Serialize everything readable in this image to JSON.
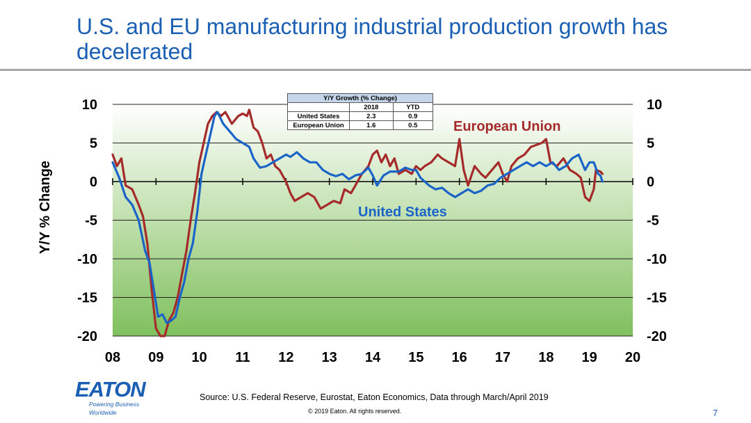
{
  "slide": {
    "title": "U.S. and EU manufacturing industrial production growth has decelerated",
    "source": "Source: U.S. Federal Reserve, Eurostat, Eaton Economics, Data through March/April 2019",
    "copyright": "© 2019 Eaton. All rights reserved.",
    "page_number": "7",
    "logo_text": "EATON",
    "logo_tagline": "Powering Business Worldwide",
    "brand_color": "#1a5fb4"
  },
  "growth_table": {
    "caption": "Y/Y Growth (% Change)",
    "columns": [
      "",
      "2018",
      "YTD"
    ],
    "rows": [
      {
        "name": "United States",
        "v2018": "2.3",
        "ytd": "0.9"
      },
      {
        "name": "European Union",
        "v2018": "1.6",
        "ytd": "0.5"
      }
    ]
  },
  "chart_data": {
    "type": "line",
    "title": "",
    "xlabel": "",
    "ylabel": "Y/Y % Change",
    "xlim": [
      2008,
      2020
    ],
    "ylim": [
      -20,
      10
    ],
    "x_ticks": [
      "08",
      "09",
      "10",
      "11",
      "12",
      "13",
      "14",
      "15",
      "16",
      "17",
      "18",
      "19",
      "20"
    ],
    "y_ticks_left": [
      "10",
      "5",
      "0",
      "-5",
      "-10",
      "-15",
      "-20"
    ],
    "y_ticks_right": [
      "10",
      "5",
      "0",
      "-5",
      "-10",
      "-15",
      "-20"
    ],
    "y_tick_values": [
      10,
      5,
      0,
      -5,
      -10,
      -15,
      -20
    ],
    "grid": true,
    "background": "gradient light-to-dark green",
    "series": [
      {
        "name": "United States",
        "color": "#1a64c8",
        "label_position": "below lines near 2014.9",
        "points": [
          [
            2008.0,
            2.5
          ],
          [
            2008.15,
            0.5
          ],
          [
            2008.3,
            -2.0
          ],
          [
            2008.45,
            -3.0
          ],
          [
            2008.6,
            -5.0
          ],
          [
            2008.75,
            -9.0
          ],
          [
            2008.85,
            -10.5
          ],
          [
            2008.95,
            -14.0
          ],
          [
            2009.05,
            -17.5
          ],
          [
            2009.15,
            -17.2
          ],
          [
            2009.25,
            -18.3
          ],
          [
            2009.35,
            -18.0
          ],
          [
            2009.45,
            -17.5
          ],
          [
            2009.55,
            -15.0
          ],
          [
            2009.65,
            -13.0
          ],
          [
            2009.75,
            -10.0
          ],
          [
            2009.85,
            -8.0
          ],
          [
            2009.95,
            -4.0
          ],
          [
            2010.05,
            1.0
          ],
          [
            2010.15,
            3.5
          ],
          [
            2010.25,
            6.0
          ],
          [
            2010.35,
            8.5
          ],
          [
            2010.42,
            9.0
          ],
          [
            2010.55,
            7.5
          ],
          [
            2010.7,
            6.5
          ],
          [
            2010.85,
            5.5
          ],
          [
            2011.0,
            5.0
          ],
          [
            2011.15,
            4.5
          ],
          [
            2011.25,
            3.0
          ],
          [
            2011.4,
            1.8
          ],
          [
            2011.55,
            2.0
          ],
          [
            2011.7,
            2.5
          ],
          [
            2011.85,
            3.0
          ],
          [
            2012.0,
            3.5
          ],
          [
            2012.1,
            3.2
          ],
          [
            2012.25,
            3.8
          ],
          [
            2012.4,
            3.0
          ],
          [
            2012.55,
            2.5
          ],
          [
            2012.7,
            2.5
          ],
          [
            2012.85,
            1.5
          ],
          [
            2013.0,
            1.0
          ],
          [
            2013.15,
            0.7
          ],
          [
            2013.3,
            1.0
          ],
          [
            2013.45,
            0.3
          ],
          [
            2013.6,
            0.8
          ],
          [
            2013.75,
            1.0
          ],
          [
            2013.9,
            1.8
          ],
          [
            2014.0,
            0.8
          ],
          [
            2014.1,
            -0.5
          ],
          [
            2014.25,
            0.8
          ],
          [
            2014.4,
            1.3
          ],
          [
            2014.6,
            1.3
          ],
          [
            2014.75,
            1.8
          ],
          [
            2014.9,
            1.5
          ],
          [
            2015.0,
            1.5
          ],
          [
            2015.1,
            0.5
          ],
          [
            2015.3,
            -0.5
          ],
          [
            2015.45,
            -1.0
          ],
          [
            2015.6,
            -0.8
          ],
          [
            2015.75,
            -1.5
          ],
          [
            2015.9,
            -2.0
          ],
          [
            2016.05,
            -1.5
          ],
          [
            2016.2,
            -1.0
          ],
          [
            2016.35,
            -1.5
          ],
          [
            2016.5,
            -1.2
          ],
          [
            2016.65,
            -0.5
          ],
          [
            2016.8,
            -0.3
          ],
          [
            2016.95,
            0.5
          ],
          [
            2017.1,
            1.0
          ],
          [
            2017.25,
            1.5
          ],
          [
            2017.4,
            2.0
          ],
          [
            2017.55,
            2.5
          ],
          [
            2017.7,
            2.0
          ],
          [
            2017.85,
            2.5
          ],
          [
            2018.0,
            2.0
          ],
          [
            2018.15,
            2.5
          ],
          [
            2018.3,
            1.5
          ],
          [
            2018.45,
            2.0
          ],
          [
            2018.6,
            3.0
          ],
          [
            2018.75,
            3.5
          ],
          [
            2018.9,
            1.5
          ],
          [
            2019.0,
            2.5
          ],
          [
            2019.1,
            2.5
          ],
          [
            2019.2,
            1.0
          ],
          [
            2019.25,
            0.8
          ],
          [
            2019.3,
            0.0
          ]
        ]
      },
      {
        "name": "European Union",
        "color": "#a52a2a",
        "label_position": "upper right near 2017.8",
        "points": [
          [
            2008.0,
            3.5
          ],
          [
            2008.1,
            2.0
          ],
          [
            2008.2,
            3.0
          ],
          [
            2008.3,
            -0.5
          ],
          [
            2008.45,
            -1.0
          ],
          [
            2008.6,
            -3.0
          ],
          [
            2008.7,
            -4.5
          ],
          [
            2008.8,
            -8.0
          ],
          [
            2008.9,
            -14.0
          ],
          [
            2009.0,
            -19.0
          ],
          [
            2009.1,
            -20.0
          ],
          [
            2009.2,
            -20.0
          ],
          [
            2009.3,
            -18.0
          ],
          [
            2009.4,
            -17.0
          ],
          [
            2009.5,
            -15.0
          ],
          [
            2009.6,
            -12.0
          ],
          [
            2009.7,
            -9.0
          ],
          [
            2009.8,
            -5.0
          ],
          [
            2009.9,
            -1.5
          ],
          [
            2010.0,
            2.5
          ],
          [
            2010.1,
            5.0
          ],
          [
            2010.2,
            7.5
          ],
          [
            2010.3,
            8.5
          ],
          [
            2010.4,
            9.0
          ],
          [
            2010.5,
            8.5
          ],
          [
            2010.6,
            9.0
          ],
          [
            2010.75,
            7.5
          ],
          [
            2010.9,
            8.5
          ],
          [
            2011.0,
            8.8
          ],
          [
            2011.1,
            8.5
          ],
          [
            2011.15,
            9.3
          ],
          [
            2011.25,
            7.0
          ],
          [
            2011.35,
            6.5
          ],
          [
            2011.45,
            5.0
          ],
          [
            2011.55,
            3.0
          ],
          [
            2011.65,
            3.5
          ],
          [
            2011.75,
            2.0
          ],
          [
            2011.85,
            1.5
          ],
          [
            2012.0,
            0.0
          ],
          [
            2012.1,
            -1.5
          ],
          [
            2012.2,
            -2.5
          ],
          [
            2012.35,
            -2.0
          ],
          [
            2012.5,
            -1.5
          ],
          [
            2012.65,
            -2.0
          ],
          [
            2012.8,
            -3.5
          ],
          [
            2012.95,
            -3.0
          ],
          [
            2013.1,
            -2.5
          ],
          [
            2013.25,
            -2.8
          ],
          [
            2013.35,
            -1.0
          ],
          [
            2013.5,
            -1.5
          ],
          [
            2013.6,
            -0.5
          ],
          [
            2013.75,
            1.0
          ],
          [
            2013.9,
            2.0
          ],
          [
            2014.0,
            3.5
          ],
          [
            2014.1,
            4.0
          ],
          [
            2014.2,
            2.5
          ],
          [
            2014.3,
            3.5
          ],
          [
            2014.4,
            2.0
          ],
          [
            2014.5,
            3.0
          ],
          [
            2014.6,
            1.0
          ],
          [
            2014.75,
            1.5
          ],
          [
            2014.9,
            1.0
          ],
          [
            2015.0,
            2.0
          ],
          [
            2015.1,
            1.5
          ],
          [
            2015.2,
            2.0
          ],
          [
            2015.35,
            2.5
          ],
          [
            2015.5,
            3.5
          ],
          [
            2015.6,
            3.0
          ],
          [
            2015.75,
            2.5
          ],
          [
            2015.9,
            2.0
          ],
          [
            2016.0,
            5.5
          ],
          [
            2016.1,
            1.5
          ],
          [
            2016.2,
            -0.5
          ],
          [
            2016.35,
            2.0
          ],
          [
            2016.5,
            1.0
          ],
          [
            2016.6,
            0.5
          ],
          [
            2016.75,
            1.5
          ],
          [
            2016.9,
            2.5
          ],
          [
            2017.0,
            1.0
          ],
          [
            2017.1,
            0.0
          ],
          [
            2017.2,
            2.0
          ],
          [
            2017.35,
            3.0
          ],
          [
            2017.5,
            3.5
          ],
          [
            2017.65,
            4.5
          ],
          [
            2017.8,
            4.8
          ],
          [
            2017.9,
            5.0
          ],
          [
            2018.0,
            5.5
          ],
          [
            2018.1,
            2.5
          ],
          [
            2018.25,
            2.0
          ],
          [
            2018.4,
            3.0
          ],
          [
            2018.55,
            1.5
          ],
          [
            2018.7,
            1.0
          ],
          [
            2018.8,
            0.5
          ],
          [
            2018.9,
            -2.0
          ],
          [
            2019.0,
            -2.5
          ],
          [
            2019.1,
            -1.0
          ],
          [
            2019.15,
            1.5
          ],
          [
            2019.25,
            1.3
          ],
          [
            2019.3,
            1.0
          ]
        ]
      }
    ]
  }
}
